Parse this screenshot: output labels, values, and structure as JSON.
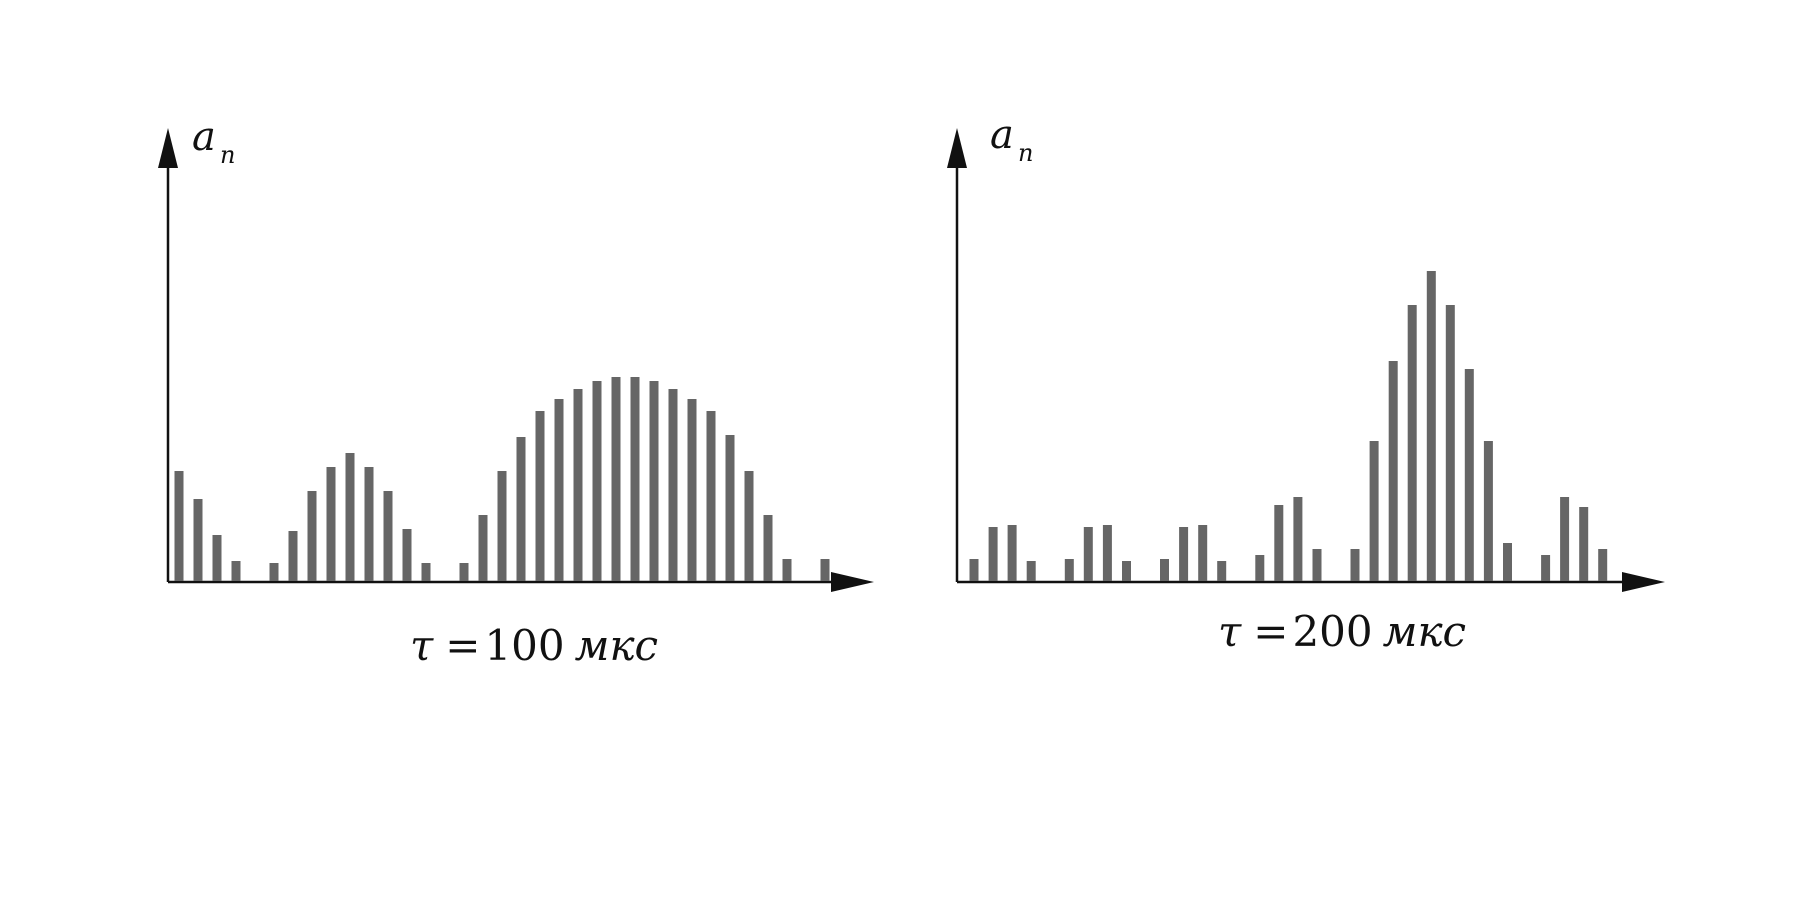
{
  "colors": {
    "bar": "#666666",
    "axis": "#111111",
    "background": "#ffffff"
  },
  "chart_data": [
    {
      "type": "bar",
      "ylabel_main": "a",
      "ylabel_sub": "n",
      "caption": {
        "symbol": "τ",
        "equals": "=",
        "value": "100",
        "unit": "мкс"
      },
      "title": "τ =100 мкс",
      "xlabel": "",
      "grid": false,
      "legend": "none",
      "ylim": [
        0,
        21
      ],
      "x": [
        1,
        2,
        3,
        4,
        6,
        7,
        8,
        9,
        10,
        11,
        12,
        13,
        14,
        16,
        17,
        18,
        19,
        20,
        21,
        22,
        23,
        24,
        25,
        26,
        27,
        28,
        29,
        30,
        31,
        32,
        33,
        35
      ],
      "values": [
        5.5,
        4.1,
        2.3,
        1.0,
        0.9,
        2.5,
        4.5,
        5.7,
        6.4,
        5.7,
        4.5,
        2.6,
        0.9,
        0.9,
        3.3,
        5.5,
        7.2,
        8.5,
        9.1,
        9.6,
        10.0,
        10.2,
        10.2,
        10.0,
        9.6,
        9.1,
        8.5,
        7.3,
        5.5,
        3.3,
        1.1,
        1.1
      ]
    },
    {
      "type": "bar",
      "ylabel_main": "a",
      "ylabel_sub": "n",
      "caption": {
        "symbol": "τ",
        "equals": "=",
        "value": "200",
        "unit": "мкс"
      },
      "title": "τ =200 мкс",
      "xlabel": "",
      "grid": false,
      "legend": "none",
      "ylim": [
        0,
        21
      ],
      "x": [
        1,
        2,
        3,
        4,
        6,
        7,
        8,
        9,
        11,
        12,
        13,
        14,
        16,
        17,
        18,
        19,
        21,
        22,
        23,
        24,
        25,
        26,
        27,
        28,
        29,
        31,
        32,
        33,
        34
      ],
      "values": [
        1.1,
        2.7,
        2.8,
        1.0,
        1.1,
        2.7,
        2.8,
        1.0,
        1.1,
        2.7,
        2.8,
        1.0,
        1.3,
        3.8,
        4.2,
        1.6,
        1.6,
        7.0,
        11.0,
        13.8,
        15.5,
        13.8,
        10.6,
        7.0,
        1.9,
        1.3,
        4.2,
        3.7,
        1.6
      ]
    }
  ]
}
